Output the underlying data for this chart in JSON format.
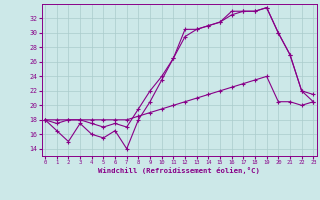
{
  "xlabel": "Windchill (Refroidissement éolien,°C)",
  "bg_color": "#cce8e8",
  "grid_color": "#aacccc",
  "line_color": "#880088",
  "xlim": [
    -0.3,
    23.3
  ],
  "ylim": [
    13.0,
    34.0
  ],
  "yticks": [
    14,
    16,
    18,
    20,
    22,
    24,
    26,
    28,
    30,
    32
  ],
  "xticks": [
    0,
    1,
    2,
    3,
    4,
    5,
    6,
    7,
    8,
    9,
    10,
    11,
    12,
    13,
    14,
    15,
    16,
    17,
    18,
    19,
    20,
    21,
    22,
    23
  ],
  "line1_x": [
    0,
    1,
    2,
    3,
    4,
    5,
    6,
    7,
    8,
    9,
    10,
    11,
    12,
    13,
    14,
    15,
    16,
    17,
    18,
    19,
    20,
    21,
    22,
    23
  ],
  "line1_y": [
    18.0,
    16.5,
    15.0,
    17.5,
    16.0,
    15.5,
    16.5,
    14.0,
    18.0,
    20.5,
    23.5,
    26.5,
    30.5,
    30.5,
    31.0,
    31.5,
    33.0,
    33.0,
    33.0,
    33.5,
    30.0,
    27.0,
    22.0,
    21.5
  ],
  "line2_x": [
    0,
    1,
    2,
    3,
    4,
    5,
    6,
    7,
    8,
    9,
    10,
    11,
    12,
    13,
    14,
    15,
    16,
    17,
    18,
    19,
    20,
    21,
    22,
    23
  ],
  "line2_y": [
    18.0,
    18.0,
    18.0,
    18.0,
    18.0,
    18.0,
    18.0,
    18.0,
    18.5,
    19.0,
    19.5,
    20.0,
    20.5,
    21.0,
    21.5,
    22.0,
    22.5,
    23.0,
    23.5,
    24.0,
    20.5,
    20.5,
    20.0,
    20.5
  ],
  "line3_x": [
    0,
    1,
    2,
    3,
    4,
    5,
    6,
    7,
    8,
    9,
    10,
    11,
    12,
    13,
    14,
    15,
    16,
    17,
    18,
    19,
    20,
    21,
    22,
    23
  ],
  "line3_y": [
    18.0,
    17.5,
    18.0,
    18.0,
    17.5,
    17.0,
    17.5,
    17.0,
    19.5,
    22.0,
    24.0,
    26.5,
    29.5,
    30.5,
    31.0,
    31.5,
    32.5,
    33.0,
    33.0,
    33.5,
    30.0,
    27.0,
    22.0,
    20.5
  ]
}
